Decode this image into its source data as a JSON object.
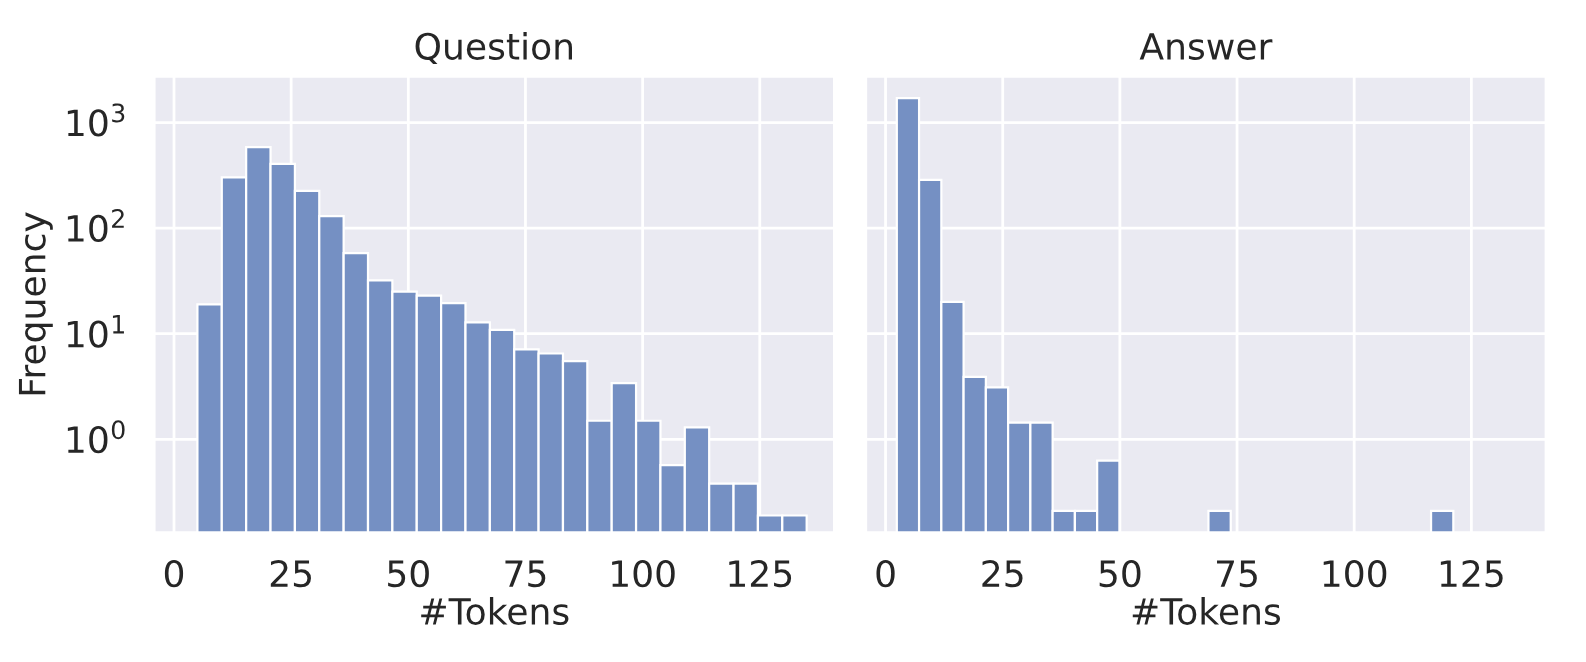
{
  "chart_data": [
    {
      "type": "histogram",
      "title": "Question",
      "xlabel": "#Tokens",
      "ylabel": "Frequency",
      "log": "y",
      "grid": true,
      "color": "#7590c3",
      "bins": [
        5,
        10.2,
        15.4,
        20.6,
        25.8,
        31,
        36.2,
        41.4,
        46.6,
        51.8,
        57,
        62.2,
        67.4,
        72.6,
        77.8,
        83,
        88.2,
        93.4,
        98.6,
        103.8,
        109,
        114.2,
        119.4,
        124.6,
        129.8,
        135
      ],
      "values": [
        19,
        302,
        585,
        405,
        225,
        130,
        58,
        32,
        25,
        23,
        19.5,
        12.8,
        10.9,
        7.1,
        6.5,
        5.5,
        1.5,
        3.4,
        1.5,
        0.57,
        1.3,
        0.38,
        0.38,
        0.19,
        0.19
      ],
      "xlim": [
        -4.3,
        141
      ],
      "xticks": [
        0,
        25,
        50,
        75,
        100,
        125
      ],
      "ylim": [
        0.13,
        2750
      ],
      "yticks": [
        {
          "value": 1,
          "label": "10$^{0}$"
        },
        {
          "value": 10,
          "label": "10$^{1}$"
        },
        {
          "value": 100,
          "label": "10$^{2}$"
        },
        {
          "value": 1000,
          "label": "10$^{3}$"
        }
      ]
    },
    {
      "type": "histogram",
      "title": "Answer",
      "xlabel": "#Tokens",
      "log": "y",
      "grid": true,
      "color": "#7590c3",
      "tick_labels": "x",
      "bins": [
        2.4,
        7.15,
        11.9,
        16.65,
        21.4,
        26.15,
        30.9,
        35.65,
        40.4,
        45.15,
        49.9,
        54.65,
        59.4,
        64.15,
        68.9,
        73.65,
        78.4,
        83.15,
        87.9,
        92.65,
        97.4,
        102.15,
        106.9,
        111.65,
        116.4,
        121.15
      ],
      "values": [
        1700,
        287,
        20,
        3.9,
        3.1,
        1.44,
        1.44,
        0.21,
        0.21,
        0.63,
        null,
        null,
        null,
        null,
        0.21,
        null,
        null,
        null,
        null,
        null,
        null,
        null,
        null,
        null,
        0.21
      ],
      "xlim": [
        -4.3,
        141
      ],
      "xticks": [
        0,
        25,
        50,
        75,
        100,
        125
      ],
      "ylim": [
        0.13,
        2750
      ],
      "yticks": [
        {
          "value": 1,
          "label": null
        },
        {
          "value": 10,
          "label": null
        },
        {
          "value": 100,
          "label": null
        },
        {
          "value": 1000,
          "label": null
        }
      ]
    }
  ]
}
